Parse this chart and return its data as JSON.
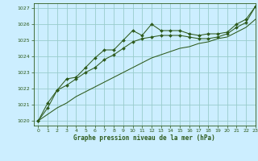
{
  "title": "Graphe pression niveau de la mer (hPa)",
  "bg_color": "#cceeff",
  "grid_color": "#99cccc",
  "line_color": "#2d5a1b",
  "xlim": [
    -0.5,
    23
  ],
  "ylim": [
    1019.7,
    1027.3
  ],
  "yticks": [
    1020,
    1021,
    1022,
    1023,
    1024,
    1025,
    1026,
    1027
  ],
  "xticks": [
    0,
    1,
    2,
    3,
    4,
    5,
    6,
    7,
    8,
    9,
    10,
    11,
    12,
    13,
    14,
    15,
    16,
    17,
    18,
    19,
    20,
    21,
    22,
    23
  ],
  "series1": {
    "x": [
      0,
      1,
      2,
      3,
      4,
      5,
      6,
      7,
      8,
      9,
      10,
      11,
      12,
      13,
      14,
      15,
      16,
      17,
      18,
      19,
      20,
      21,
      22,
      23
    ],
    "y": [
      1020.0,
      1020.8,
      1021.9,
      1022.6,
      1022.7,
      1023.3,
      1023.9,
      1024.4,
      1024.4,
      1025.0,
      1025.6,
      1025.3,
      1026.0,
      1025.6,
      1025.6,
      1025.6,
      1025.4,
      1025.3,
      1025.4,
      1025.4,
      1025.5,
      1026.0,
      1026.3,
      1027.1
    ]
  },
  "series2": {
    "x": [
      0,
      1,
      2,
      3,
      4,
      5,
      6,
      7,
      8,
      9,
      10,
      11,
      12,
      13,
      14,
      15,
      16,
      17,
      18,
      19,
      20,
      21,
      22,
      23
    ],
    "y": [
      1020.0,
      1020.4,
      1020.8,
      1021.1,
      1021.5,
      1021.8,
      1022.1,
      1022.4,
      1022.7,
      1023.0,
      1023.3,
      1023.6,
      1023.9,
      1024.1,
      1024.3,
      1024.5,
      1024.6,
      1024.8,
      1024.9,
      1025.1,
      1025.2,
      1025.5,
      1025.8,
      1026.3
    ]
  },
  "series3": {
    "x": [
      0,
      1,
      2,
      3,
      4,
      5,
      6,
      7,
      8,
      9,
      10,
      11,
      12,
      13,
      14,
      15,
      16,
      17,
      18,
      19,
      20,
      21,
      22,
      23
    ],
    "y": [
      1020.0,
      1021.1,
      1021.9,
      1022.2,
      1022.6,
      1023.0,
      1023.3,
      1023.8,
      1024.1,
      1024.5,
      1024.9,
      1025.1,
      1025.2,
      1025.3,
      1025.3,
      1025.3,
      1025.2,
      1025.1,
      1025.1,
      1025.2,
      1025.4,
      1025.8,
      1026.1,
      1027.1
    ]
  }
}
